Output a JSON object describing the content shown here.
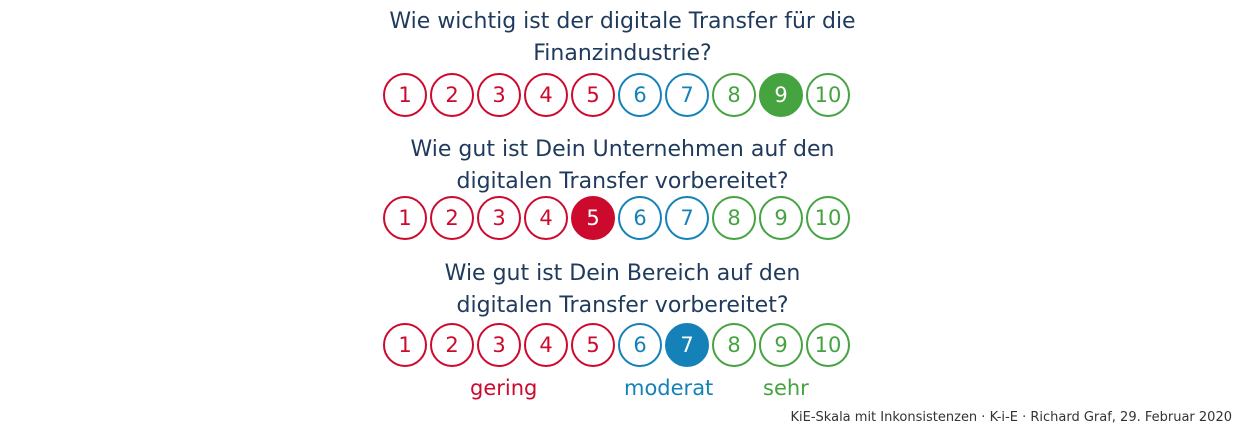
{
  "questions": [
    {
      "lines": [
        "Wie wichtig ist der digitale Transfer für die",
        "Finanzindustrie?"
      ],
      "selected": 9
    },
    {
      "lines": [
        "Wie gut ist Dein Unternehmen auf den",
        "digitalen Transfer vorbereitet?"
      ],
      "selected": 5
    },
    {
      "lines": [
        "Wie gut ist Dein Bereich auf den",
        "digitalen Transfer vorbereitet?"
      ],
      "selected": 7
    }
  ],
  "scale": [
    {
      "label": "1",
      "group": "red"
    },
    {
      "label": "2",
      "group": "red"
    },
    {
      "label": "3",
      "group": "red"
    },
    {
      "label": "4",
      "group": "red"
    },
    {
      "label": "5",
      "group": "red"
    },
    {
      "label": "6",
      "group": "blue"
    },
    {
      "label": "7",
      "group": "blue"
    },
    {
      "label": "8",
      "group": "green"
    },
    {
      "label": "9",
      "group": "green"
    },
    {
      "label": "10",
      "group": "green"
    }
  ],
  "legend": {
    "low": "gering",
    "mid": "moderat",
    "high": "sehr"
  },
  "colors": {
    "red": "#cc0a2e",
    "blue": "#1482b8",
    "green": "#45a340",
    "question_text": "#1f3a5c"
  },
  "footer": "KiE-Skala mit Inkonsistenzen · K-i-E · Richard Graf, 29. Februar 2020"
}
